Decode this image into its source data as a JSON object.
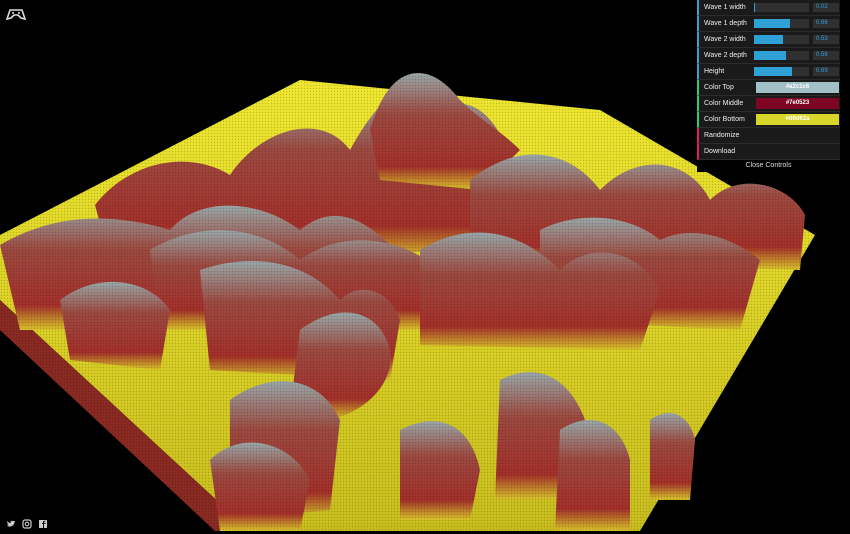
{
  "controls": {
    "sliders": [
      {
        "label": "Wave 1 width",
        "value": "0.02",
        "level": 0.02
      },
      {
        "label": "Wave 1 depth",
        "value": "0.66",
        "level": 0.66
      },
      {
        "label": "Wave 2 width",
        "value": "0.53",
        "level": 0.53
      },
      {
        "label": "Wave 2 depth",
        "value": "0.58",
        "level": 0.58
      },
      {
        "label": "Height",
        "value": "0.69",
        "level": 0.69
      }
    ],
    "color_top": {
      "label": "Color Top",
      "value": "#a2c1c6",
      "hex": "#a2c1c6"
    },
    "color_middle": {
      "label": "Color Middle",
      "value": "#7e0523",
      "hex": "#7e0523"
    },
    "color_bottom": {
      "label": "Color Bottom",
      "value": "#d9d62a",
      "hex": "#d9d62a"
    },
    "randomize_label": "Randomize",
    "download_label": "Download",
    "close_label": "Close Controls"
  },
  "icons": {
    "logo": "gamepad-logo-icon",
    "twitter": "twitter-icon",
    "instagram": "instagram-icon",
    "facebook": "facebook-icon"
  },
  "palette": {
    "background": "#000000",
    "panel": "#1a1a1a",
    "slider_fill": "#2fa1d6",
    "terrain_red": "#a03a2e",
    "terrain_yellow": "#e3dc2c"
  }
}
